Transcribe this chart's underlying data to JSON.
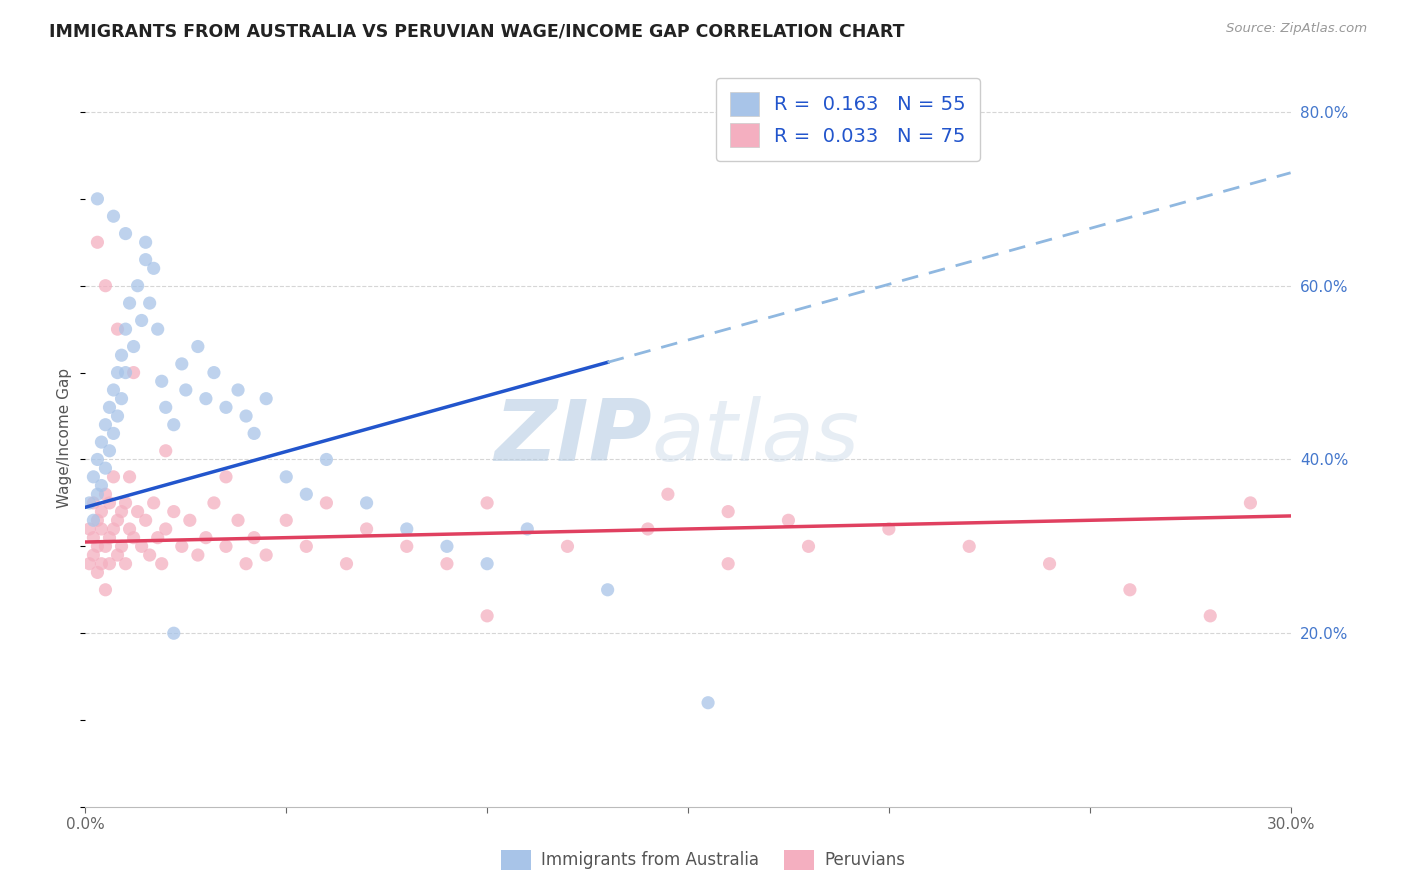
{
  "title": "IMMIGRANTS FROM AUSTRALIA VS PERUVIAN WAGE/INCOME GAP CORRELATION CHART",
  "source": "Source: ZipAtlas.com",
  "ylabel": "Wage/Income Gap",
  "x_min": 0.0,
  "x_max": 0.3,
  "y_min": 0.0,
  "y_max": 0.85,
  "x_tick_positions": [
    0.0,
    0.05,
    0.1,
    0.15,
    0.2,
    0.25,
    0.3
  ],
  "x_tick_labels": [
    "0.0%",
    "",
    "",
    "",
    "",
    "",
    "30.0%"
  ],
  "y_ticks_right": [
    0.2,
    0.4,
    0.6,
    0.8
  ],
  "y_tick_labels_right": [
    "20.0%",
    "40.0%",
    "60.0%",
    "80.0%"
  ],
  "series1_color": "#a8c4e8",
  "series2_color": "#f4afc0",
  "line1_color": "#2255cc",
  "line2_color": "#e04060",
  "line1_dashed_color": "#90b8e0",
  "series1_R": 0.163,
  "series1_N": 55,
  "series2_R": 0.033,
  "series2_N": 75,
  "watermark_zip": "ZIP",
  "watermark_atlas": "atlas",
  "line1_x0": 0.0,
  "line1_y0": 0.345,
  "line1_x1": 0.3,
  "line1_y1": 0.73,
  "line1_solid_end": 0.13,
  "line2_x0": 0.0,
  "line2_y0": 0.305,
  "line2_x1": 0.3,
  "line2_y1": 0.335,
  "series1_x": [
    0.001,
    0.002,
    0.002,
    0.003,
    0.003,
    0.004,
    0.004,
    0.005,
    0.005,
    0.006,
    0.006,
    0.007,
    0.007,
    0.008,
    0.008,
    0.009,
    0.009,
    0.01,
    0.01,
    0.011,
    0.012,
    0.013,
    0.014,
    0.015,
    0.016,
    0.017,
    0.018,
    0.019,
    0.02,
    0.022,
    0.024,
    0.025,
    0.028,
    0.03,
    0.032,
    0.035,
    0.038,
    0.04,
    0.042,
    0.045,
    0.05,
    0.055,
    0.06,
    0.07,
    0.08,
    0.09,
    0.1,
    0.11,
    0.13,
    0.155,
    0.003,
    0.007,
    0.01,
    0.015,
    0.022
  ],
  "series1_y": [
    0.35,
    0.33,
    0.38,
    0.36,
    0.4,
    0.42,
    0.37,
    0.44,
    0.39,
    0.46,
    0.41,
    0.48,
    0.43,
    0.5,
    0.45,
    0.52,
    0.47,
    0.55,
    0.5,
    0.58,
    0.53,
    0.6,
    0.56,
    0.63,
    0.58,
    0.62,
    0.55,
    0.49,
    0.46,
    0.44,
    0.51,
    0.48,
    0.53,
    0.47,
    0.5,
    0.46,
    0.48,
    0.45,
    0.43,
    0.47,
    0.38,
    0.36,
    0.4,
    0.35,
    0.32,
    0.3,
    0.28,
    0.32,
    0.25,
    0.12,
    0.7,
    0.68,
    0.66,
    0.65,
    0.2
  ],
  "series2_x": [
    0.001,
    0.001,
    0.002,
    0.002,
    0.002,
    0.003,
    0.003,
    0.003,
    0.004,
    0.004,
    0.004,
    0.005,
    0.005,
    0.005,
    0.006,
    0.006,
    0.006,
    0.007,
    0.007,
    0.008,
    0.008,
    0.009,
    0.009,
    0.01,
    0.01,
    0.011,
    0.011,
    0.012,
    0.013,
    0.014,
    0.015,
    0.016,
    0.017,
    0.018,
    0.019,
    0.02,
    0.022,
    0.024,
    0.026,
    0.028,
    0.03,
    0.032,
    0.035,
    0.038,
    0.04,
    0.042,
    0.045,
    0.05,
    0.055,
    0.06,
    0.065,
    0.07,
    0.08,
    0.09,
    0.1,
    0.12,
    0.14,
    0.16,
    0.18,
    0.2,
    0.22,
    0.24,
    0.26,
    0.28,
    0.003,
    0.005,
    0.008,
    0.012,
    0.02,
    0.035,
    0.145,
    0.16,
    0.175,
    0.29,
    0.1
  ],
  "series2_y": [
    0.32,
    0.28,
    0.31,
    0.35,
    0.29,
    0.33,
    0.27,
    0.3,
    0.34,
    0.28,
    0.32,
    0.36,
    0.3,
    0.25,
    0.31,
    0.35,
    0.28,
    0.32,
    0.38,
    0.33,
    0.29,
    0.34,
    0.3,
    0.35,
    0.28,
    0.32,
    0.38,
    0.31,
    0.34,
    0.3,
    0.33,
    0.29,
    0.35,
    0.31,
    0.28,
    0.32,
    0.34,
    0.3,
    0.33,
    0.29,
    0.31,
    0.35,
    0.3,
    0.33,
    0.28,
    0.31,
    0.29,
    0.33,
    0.3,
    0.35,
    0.28,
    0.32,
    0.3,
    0.28,
    0.35,
    0.3,
    0.32,
    0.28,
    0.3,
    0.32,
    0.3,
    0.28,
    0.25,
    0.22,
    0.65,
    0.6,
    0.55,
    0.5,
    0.41,
    0.38,
    0.36,
    0.34,
    0.33,
    0.35,
    0.22
  ]
}
